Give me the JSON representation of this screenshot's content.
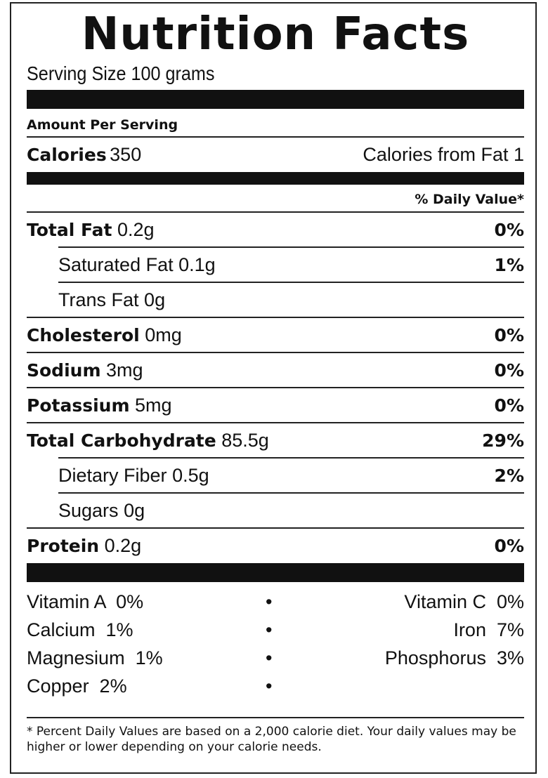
{
  "title": "Nutrition Facts",
  "serving_size": "Serving Size 100 grams",
  "amount_per_serving": "Amount Per Serving",
  "calories": {
    "label": "Calories",
    "value": "350",
    "from_fat": "Calories from Fat 1"
  },
  "daily_value_header": "% Daily Value*",
  "nutrients": [
    {
      "name": "Total Fat",
      "amount": "0.2g",
      "pct": "0%"
    },
    {
      "name": "Saturated Fat",
      "amount": "0.1g",
      "pct": "1%"
    },
    {
      "name": "Trans Fat",
      "amount": "0g",
      "pct": ""
    },
    {
      "name": "Cholesterol",
      "amount": "0mg",
      "pct": "0%"
    },
    {
      "name": "Sodium",
      "amount": "3mg",
      "pct": "0%"
    },
    {
      "name": "Potassium",
      "amount": "5mg",
      "pct": "0%"
    },
    {
      "name": "Total Carbohydrate",
      "amount": "85.5g",
      "pct": "29%"
    },
    {
      "name": "Dietary Fiber",
      "amount": "0.5g",
      "pct": "2%"
    },
    {
      "name": "Sugars",
      "amount": "0g",
      "pct": ""
    },
    {
      "name": "Protein",
      "amount": "0.2g",
      "pct": "0%"
    }
  ],
  "vitamins": [
    {
      "left": "Vitamin A  0%",
      "sep": "•",
      "right": "Vitamin C  0%"
    },
    {
      "left": "Calcium  1%",
      "sep": "•",
      "right": "Iron  7%"
    },
    {
      "left": "Magnesium  1%",
      "sep": "•",
      "right": "Phosphorus  3%"
    },
    {
      "left": "Copper  2%",
      "sep": "•",
      "right": ""
    }
  ],
  "footnote": "* Percent Daily Values are based on a 2,000 calorie diet. Your daily values may be higher or lower depending on your calorie needs."
}
